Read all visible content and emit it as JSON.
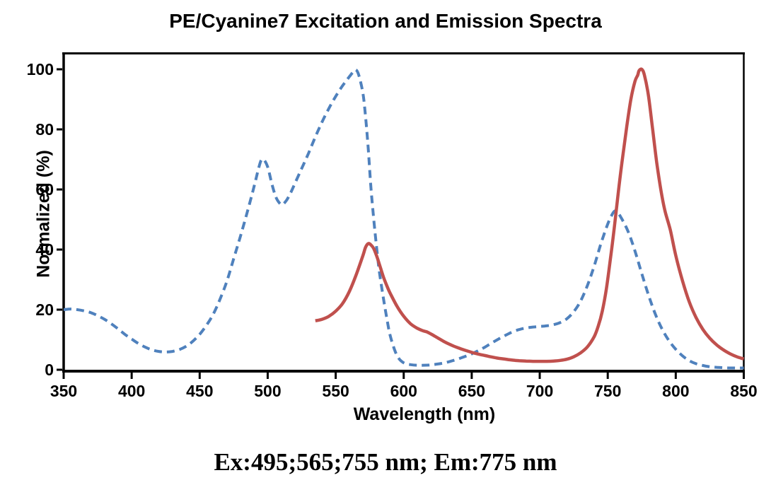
{
  "page": {
    "background": "#ffffff"
  },
  "chart_data": {
    "type": "line",
    "title": "PE/Cyanine7 Excitation and Emission Spectra",
    "xlabel": "Wavelength (nm)",
    "ylabel": "Normalized (%)",
    "annotation": "Ex:495;565;755 nm; Em:775 nm",
    "xlim": [
      350,
      850
    ],
    "ylim": [
      0,
      105.6
    ],
    "x_ticks": [
      350,
      400,
      450,
      500,
      550,
      600,
      650,
      700,
      750,
      800,
      850
    ],
    "y_ticks": [
      0,
      20,
      40,
      60,
      80,
      100
    ],
    "grid": false,
    "legend": "none",
    "axis_color": "#000000",
    "series": [
      {
        "name": "Excitation",
        "style": "dashed",
        "color": "#4f81bd",
        "width": 4,
        "points": [
          [
            350,
            20
          ],
          [
            355,
            20.2
          ],
          [
            360,
            20
          ],
          [
            365,
            19.6
          ],
          [
            370,
            19
          ],
          [
            375,
            18
          ],
          [
            380,
            16.8
          ],
          [
            385,
            15.3
          ],
          [
            390,
            13.6
          ],
          [
            395,
            11.8
          ],
          [
            400,
            10.2
          ],
          [
            405,
            8.7
          ],
          [
            410,
            7.5
          ],
          [
            415,
            6.6
          ],
          [
            420,
            6.1
          ],
          [
            425,
            5.9
          ],
          [
            430,
            6.1
          ],
          [
            435,
            6.7
          ],
          [
            440,
            7.8
          ],
          [
            445,
            9.5
          ],
          [
            450,
            11.8
          ],
          [
            455,
            14.8
          ],
          [
            460,
            18.5
          ],
          [
            465,
            23.5
          ],
          [
            470,
            29.5
          ],
          [
            475,
            37
          ],
          [
            480,
            44.5
          ],
          [
            485,
            52.5
          ],
          [
            490,
            61
          ],
          [
            493,
            66.5
          ],
          [
            495,
            69.5
          ],
          [
            497,
            70
          ],
          [
            500,
            67.5
          ],
          [
            503,
            62
          ],
          [
            506,
            57.5
          ],
          [
            509,
            55.3
          ],
          [
            511,
            55
          ],
          [
            514,
            56.5
          ],
          [
            517,
            59
          ],
          [
            520,
            62
          ],
          [
            525,
            67
          ],
          [
            530,
            72
          ],
          [
            535,
            77.5
          ],
          [
            540,
            82.5
          ],
          [
            545,
            87
          ],
          [
            550,
            91
          ],
          [
            555,
            94.5
          ],
          [
            560,
            97.5
          ],
          [
            563,
            99.2
          ],
          [
            565,
            99.8
          ],
          [
            567,
            98
          ],
          [
            570,
            92
          ],
          [
            572,
            84
          ],
          [
            574,
            73
          ],
          [
            576,
            60
          ],
          [
            578,
            50
          ],
          [
            580,
            41
          ],
          [
            582,
            33
          ],
          [
            585,
            24
          ],
          [
            588,
            16
          ],
          [
            590,
            11.5
          ],
          [
            593,
            7
          ],
          [
            596,
            4
          ],
          [
            600,
            2.3
          ],
          [
            605,
            1.7
          ],
          [
            610,
            1.5
          ],
          [
            615,
            1.5
          ],
          [
            620,
            1.6
          ],
          [
            625,
            1.9
          ],
          [
            630,
            2.3
          ],
          [
            635,
            2.9
          ],
          [
            640,
            3.6
          ],
          [
            645,
            4.4
          ],
          [
            650,
            5.3
          ],
          [
            655,
            6.4
          ],
          [
            660,
            7.6
          ],
          [
            665,
            9
          ],
          [
            670,
            10.3
          ],
          [
            675,
            11.5
          ],
          [
            680,
            12.6
          ],
          [
            685,
            13.4
          ],
          [
            690,
            13.9
          ],
          [
            695,
            14.2
          ],
          [
            700,
            14.4
          ],
          [
            705,
            14.6
          ],
          [
            710,
            15
          ],
          [
            715,
            15.7
          ],
          [
            720,
            17
          ],
          [
            725,
            19.3
          ],
          [
            730,
            22.8
          ],
          [
            735,
            28
          ],
          [
            740,
            34.5
          ],
          [
            745,
            42
          ],
          [
            750,
            48.5
          ],
          [
            753,
            51.5
          ],
          [
            755,
            52.8
          ],
          [
            757,
            52.5
          ],
          [
            760,
            50.5
          ],
          [
            765,
            46
          ],
          [
            770,
            39.5
          ],
          [
            775,
            32
          ],
          [
            780,
            24.8
          ],
          [
            785,
            18.5
          ],
          [
            790,
            13.5
          ],
          [
            795,
            9.7
          ],
          [
            800,
            6.8
          ],
          [
            805,
            4.6
          ],
          [
            810,
            3
          ],
          [
            815,
            2
          ],
          [
            820,
            1.4
          ],
          [
            825,
            1
          ],
          [
            830,
            0.8
          ],
          [
            835,
            0.7
          ],
          [
            840,
            0.6
          ],
          [
            845,
            0.6
          ],
          [
            850,
            0.6
          ]
        ]
      },
      {
        "name": "Emission",
        "style": "solid",
        "color": "#c0504d",
        "width": 4.5,
        "points": [
          [
            535,
            16.3
          ],
          [
            540,
            16.8
          ],
          [
            545,
            17.8
          ],
          [
            550,
            19.5
          ],
          [
            555,
            22
          ],
          [
            560,
            26
          ],
          [
            565,
            31.5
          ],
          [
            570,
            38
          ],
          [
            572,
            40.8
          ],
          [
            574,
            42
          ],
          [
            576,
            41.5
          ],
          [
            578,
            40.3
          ],
          [
            580,
            38
          ],
          [
            582,
            35.3
          ],
          [
            585,
            31
          ],
          [
            588,
            27.5
          ],
          [
            590,
            25.5
          ],
          [
            595,
            21.2
          ],
          [
            600,
            17.8
          ],
          [
            605,
            15.3
          ],
          [
            610,
            13.8
          ],
          [
            614,
            13
          ],
          [
            617,
            12.6
          ],
          [
            620,
            11.9
          ],
          [
            625,
            10.6
          ],
          [
            630,
            9.3
          ],
          [
            635,
            8.2
          ],
          [
            640,
            7.3
          ],
          [
            645,
            6.5
          ],
          [
            650,
            5.8
          ],
          [
            655,
            5.2
          ],
          [
            660,
            4.7
          ],
          [
            665,
            4.2
          ],
          [
            670,
            3.8
          ],
          [
            675,
            3.5
          ],
          [
            680,
            3.2
          ],
          [
            685,
            3
          ],
          [
            690,
            2.9
          ],
          [
            695,
            2.8
          ],
          [
            700,
            2.8
          ],
          [
            705,
            2.8
          ],
          [
            710,
            2.9
          ],
          [
            715,
            3.1
          ],
          [
            720,
            3.5
          ],
          [
            725,
            4.3
          ],
          [
            730,
            5.6
          ],
          [
            735,
            7.6
          ],
          [
            740,
            11
          ],
          [
            743,
            14.5
          ],
          [
            746,
            19.5
          ],
          [
            749,
            27
          ],
          [
            752,
            37
          ],
          [
            755,
            48
          ],
          [
            758,
            60
          ],
          [
            761,
            71
          ],
          [
            764,
            81
          ],
          [
            767,
            90
          ],
          [
            770,
            96
          ],
          [
            772,
            98
          ],
          [
            773,
            99.5
          ],
          [
            775,
            100
          ],
          [
            777,
            98
          ],
          [
            780,
            91
          ],
          [
            783,
            80
          ],
          [
            786,
            69
          ],
          [
            789,
            60
          ],
          [
            792,
            53
          ],
          [
            796,
            46.5
          ],
          [
            800,
            38
          ],
          [
            805,
            29.5
          ],
          [
            810,
            22.5
          ],
          [
            815,
            17.3
          ],
          [
            820,
            13.4
          ],
          [
            825,
            10.5
          ],
          [
            830,
            8.3
          ],
          [
            835,
            6.6
          ],
          [
            840,
            5.3
          ],
          [
            845,
            4.3
          ],
          [
            850,
            3.6
          ]
        ]
      }
    ]
  }
}
